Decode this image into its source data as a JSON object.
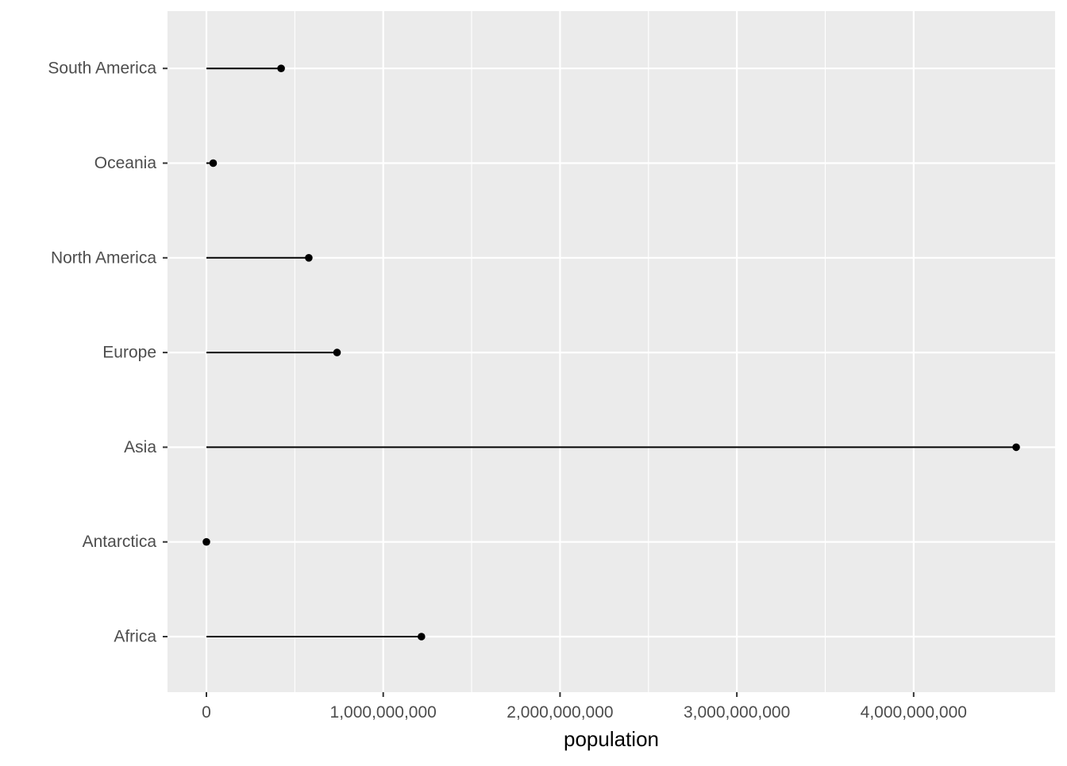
{
  "chart_data": {
    "type": "lollipop",
    "xlabel": "population",
    "ylabel": "",
    "categories": [
      "Africa",
      "Antarctica",
      "Asia",
      "Europe",
      "North America",
      "Oceania",
      "South America"
    ],
    "values": [
      1216130000,
      0,
      4580000000,
      738849000,
      579024000,
      38304000,
      422535000
    ],
    "xlim": [
      -220000000,
      4800000000
    ],
    "x_ticks": [
      0,
      1000000000,
      2000000000,
      3000000000,
      4000000000
    ],
    "x_tick_labels": [
      "0",
      "1,000,000,000",
      "2,000,000,000",
      "3,000,000,000",
      "4,000,000,000"
    ],
    "grid": true,
    "legend": "none",
    "colors": {
      "panel_background": "#EBEBEB",
      "grid_line": "#FFFFFF",
      "mark": "#000000",
      "tick_label": "#4D4D4D",
      "axis_title": "#000000"
    }
  }
}
